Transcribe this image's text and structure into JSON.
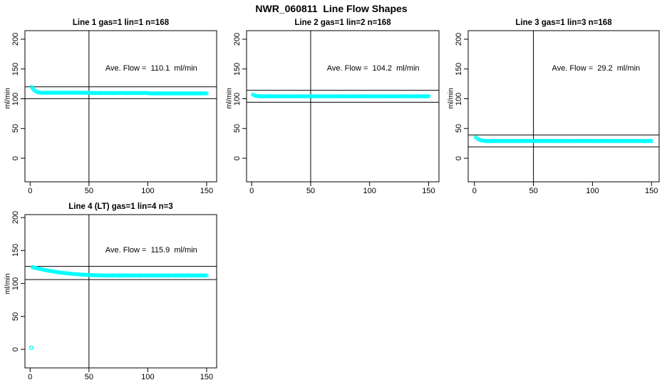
{
  "main_title": "NWR_060811  Line Flow Shapes",
  "chart_data": [
    {
      "type": "scatter",
      "title": "Line 1 gas=1 lin=1 n=168",
      "annotation": "Ave. Flow =  110.1  ml/min",
      "ave_flow_ml_min": 110.1,
      "ylabel": "ml/min",
      "xlim": [
        0,
        150
      ],
      "ylim": [
        0,
        200
      ],
      "xticks": [
        0,
        50,
        100,
        150
      ],
      "xtick_labels": [
        "0",
        "50",
        "100",
        "150"
      ],
      "yticks": [
        0,
        50,
        100,
        150,
        200
      ],
      "ytick_labels": [
        "0",
        "50",
        "100",
        "150",
        "200"
      ],
      "vline_x": 50,
      "hlines": [
        120.1,
        100.1
      ],
      "marker_color": "#00FFFF",
      "x_start": 1,
      "x_step": 1,
      "y": [
        120.2,
        117.6,
        115.4,
        113.6,
        112.2,
        111.3,
        110.7,
        110.4,
        110.3,
        110.0,
        110.4,
        109.9,
        110.2,
        110.1,
        110.3,
        110.0,
        110.4,
        109.9,
        110.2,
        110.1,
        110.3,
        110.0,
        110.4,
        109.9,
        110.2,
        110.1,
        110.3,
        110.0,
        110.4,
        109.9,
        110.2,
        110.1,
        110.3,
        110.0,
        110.4,
        109.9,
        110.2,
        110.1,
        110.3,
        110.0,
        110.4,
        109.9,
        110.2,
        110.1,
        110.3,
        110.0,
        110.4,
        109.9,
        110.2,
        110.1,
        109.8,
        109.5,
        109.9,
        109.4,
        109.7,
        109.6,
        109.8,
        109.5,
        109.9,
        109.4,
        109.7,
        109.6,
        109.8,
        109.5,
        109.9,
        109.4,
        109.7,
        109.6,
        109.8,
        109.5,
        109.9,
        109.4,
        109.7,
        109.6,
        109.8,
        109.5,
        109.9,
        109.4,
        109.7,
        109.6,
        109.8,
        109.5,
        109.9,
        109.4,
        109.7,
        109.6,
        109.8,
        109.5,
        109.9,
        109.4,
        109.7,
        109.6,
        109.8,
        109.5,
        109.9,
        109.4,
        109.7,
        109.6,
        109.8,
        109.5,
        109.2,
        108.9,
        109.3,
        108.8,
        109.1,
        109.0,
        109.2,
        108.9,
        109.3,
        108.8,
        109.1,
        109.0,
        109.2,
        108.9,
        109.3,
        108.8,
        109.1,
        109.0,
        109.2,
        108.9,
        109.3,
        108.8,
        109.1,
        109.0,
        109.2,
        108.9,
        109.3,
        108.8,
        109.1,
        109.0,
        109.2,
        108.9,
        109.3,
        108.8,
        109.1,
        109.0,
        109.2,
        108.9,
        109.3,
        108.8,
        109.1,
        109.0,
        109.2,
        108.9,
        109.3,
        108.8,
        109.1,
        109.0,
        109.2,
        108.9
      ],
      "outliers": []
    },
    {
      "type": "scatter",
      "title": "Line 2 gas=1 lin=2 n=168",
      "annotation": "Ave. Flow =  104.2  ml/min",
      "ave_flow_ml_min": 104.2,
      "ylabel": "ml/min",
      "xlim": [
        0,
        150
      ],
      "ylim": [
        0,
        200
      ],
      "xticks": [
        0,
        50,
        100,
        150
      ],
      "xtick_labels": [
        "0",
        "50",
        "100",
        "150"
      ],
      "yticks": [
        0,
        50,
        100,
        150,
        200
      ],
      "ytick_labels": [
        "0",
        "50",
        "100",
        "150",
        "200"
      ],
      "vline_x": 50,
      "hlines": [
        114.2,
        94.2
      ],
      "marker_color": "#00FFFF",
      "x_start": 1,
      "x_step": 1,
      "y": [
        107.2,
        105.9,
        105.1,
        104.7,
        104.5,
        104.3,
        104.0,
        104.4,
        103.9,
        104.2,
        104.1,
        104.3,
        104.0,
        104.4,
        103.9,
        104.2,
        104.1,
        104.3,
        104.0,
        104.4,
        103.9,
        104.2,
        104.1,
        104.3,
        104.0,
        104.4,
        103.9,
        104.2,
        104.1,
        104.3,
        104.0,
        104.4,
        103.9,
        104.2,
        104.1,
        104.3,
        104.0,
        104.4,
        103.9,
        104.2,
        104.1,
        104.3,
        104.0,
        104.4,
        103.9,
        104.2,
        104.1,
        104.3,
        104.0,
        104.4,
        103.9,
        104.2,
        104.1,
        104.3,
        104.0,
        104.4,
        103.9,
        104.2,
        104.1,
        104.3,
        104.0,
        104.4,
        103.9,
        104.2,
        104.1,
        104.3,
        104.0,
        104.4,
        103.9,
        104.2,
        104.1,
        104.3,
        104.0,
        104.4,
        103.9,
        104.2,
        104.1,
        104.3,
        104.0,
        104.4,
        103.9,
        104.2,
        104.1,
        104.3,
        104.0,
        104.4,
        103.9,
        104.2,
        104.1,
        104.3,
        104.0,
        104.4,
        103.9,
        104.2,
        104.1,
        104.3,
        104.0,
        104.4,
        103.9,
        104.2,
        104.1,
        104.3,
        104.0,
        104.4,
        103.9,
        104.2,
        104.1,
        104.3,
        104.0,
        104.4,
        103.9,
        104.2,
        104.1,
        104.3,
        104.0,
        104.4,
        103.9,
        104.2,
        104.1,
        104.3,
        104.0,
        104.4,
        103.9,
        104.2,
        104.1,
        104.3,
        104.0,
        104.4,
        103.9,
        104.2,
        104.1,
        104.3,
        104.0,
        104.4,
        103.9,
        104.2,
        104.1,
        104.3,
        104.0,
        104.4,
        103.9,
        104.2,
        104.1,
        104.3,
        104.0,
        104.4,
        103.9,
        104.2,
        104.1,
        104.3
      ],
      "outliers": []
    },
    {
      "type": "scatter",
      "title": "Line 3 gas=1 lin=3 n=168",
      "annotation": "Ave. Flow =  29.2  ml/min",
      "ave_flow_ml_min": 29.2,
      "ylabel": "ml/min",
      "xlim": [
        0,
        150
      ],
      "ylim": [
        0,
        200
      ],
      "xticks": [
        0,
        50,
        100,
        150
      ],
      "xtick_labels": [
        "0",
        "50",
        "100",
        "150"
      ],
      "yticks": [
        0,
        50,
        100,
        150,
        200
      ],
      "ytick_labels": [
        "0",
        "50",
        "100",
        "150",
        "200"
      ],
      "vline_x": 50,
      "hlines": [
        39.2,
        19.2
      ],
      "marker_color": "#00FFFF",
      "x_start": 1,
      "x_step": 1,
      "y": [
        35.6,
        33.8,
        32.4,
        31.3,
        30.5,
        29.9,
        29.6,
        29.4,
        29.2,
        28.9,
        29.3,
        28.8,
        29.1,
        29.0,
        29.2,
        28.9,
        29.3,
        28.8,
        29.1,
        29.0,
        29.2,
        28.9,
        29.3,
        28.8,
        29.1,
        29.0,
        29.2,
        28.9,
        29.3,
        28.8,
        29.1,
        29.0,
        29.2,
        28.9,
        29.3,
        28.8,
        29.1,
        29.0,
        29.2,
        28.9,
        29.3,
        28.8,
        29.1,
        29.0,
        29.2,
        28.9,
        29.3,
        28.8,
        29.1,
        29.0,
        29.2,
        28.9,
        29.3,
        28.8,
        29.1,
        29.0,
        29.2,
        28.9,
        29.3,
        28.8,
        29.1,
        29.0,
        29.2,
        28.9,
        29.3,
        28.8,
        29.1,
        29.0,
        29.2,
        28.9,
        29.3,
        28.8,
        29.1,
        29.0,
        29.2,
        28.9,
        29.3,
        28.8,
        29.1,
        29.0,
        29.2,
        28.9,
        29.3,
        28.8,
        29.1,
        29.0,
        29.2,
        28.9,
        29.3,
        28.8,
        29.1,
        29.0,
        29.2,
        28.9,
        29.3,
        28.8,
        29.1,
        29.0,
        29.2,
        28.9,
        29.3,
        28.8,
        29.1,
        29.0,
        29.2,
        28.9,
        29.3,
        28.8,
        29.1,
        29.0,
        29.2,
        28.9,
        29.3,
        28.8,
        29.1,
        29.0,
        29.2,
        28.9,
        29.3,
        28.8,
        29.1,
        29.0,
        29.2,
        28.9,
        29.3,
        28.8,
        29.1,
        29.0,
        29.2,
        28.9,
        29.3,
        28.8,
        29.1,
        29.0,
        29.2,
        28.9,
        29.3,
        28.8,
        29.1,
        29.0,
        29.2,
        28.9,
        29.3,
        28.8,
        29.1,
        29.0,
        29.2,
        28.9,
        29.3,
        28.8
      ],
      "outliers": []
    },
    {
      "type": "scatter",
      "title": "Line 4 (LT) gas=1 lin=4 n=3",
      "annotation": "Ave. Flow =  115.9  ml/min",
      "ave_flow_ml_min": 115.9,
      "ylabel": "ml/min",
      "xlim": [
        0,
        150
      ],
      "ylim": [
        0,
        200
      ],
      "xticks": [
        0,
        50,
        100,
        150
      ],
      "xtick_labels": [
        "0",
        "50",
        "100",
        "150"
      ],
      "yticks": [
        0,
        50,
        100,
        150,
        200
      ],
      "ytick_labels": [
        "0",
        "50",
        "100",
        "150",
        "200"
      ],
      "vline_x": 50,
      "hlines": [
        125.9,
        105.9
      ],
      "marker_color": "#00FFFF",
      "x_start": 2,
      "x_step": 1,
      "y": [
        124.8,
        124.3,
        123.8,
        123.4,
        123.0,
        122.6,
        122.2,
        121.8,
        121.4,
        121.0,
        120.7,
        120.3,
        120.0,
        119.6,
        119.3,
        119.0,
        118.7,
        118.4,
        118.1,
        117.8,
        117.5,
        117.3,
        117.0,
        116.8,
        116.5,
        116.3,
        116.1,
        115.9,
        115.7,
        115.5,
        115.3,
        115.1,
        114.9,
        114.8,
        114.6,
        114.4,
        114.3,
        114.1,
        114.0,
        114.0,
        113.7,
        113.6,
        113.5,
        113.4,
        113.3,
        113.2,
        113.1,
        113.0,
        112.9,
        112.8,
        112.8,
        112.7,
        112.6,
        112.6,
        112.5,
        112.5,
        112.4,
        112.4,
        112.3,
        112.3,
        112.3,
        112.0,
        112.4,
        111.9,
        112.2,
        112.1,
        112.3,
        112.0,
        112.4,
        111.9,
        112.2,
        112.1,
        112.3,
        112.0,
        112.4,
        111.9,
        112.2,
        112.1,
        112.3,
        112.0,
        112.4,
        111.9,
        112.2,
        112.1,
        112.3,
        112.0,
        112.4,
        111.9,
        112.2,
        112.1,
        112.3,
        112.0,
        112.4,
        111.9,
        112.2,
        112.1,
        112.3,
        112.0,
        112.4,
        111.9,
        112.2,
        112.1,
        112.3,
        112.0,
        112.4,
        111.9,
        112.2,
        112.1,
        112.3,
        112.0,
        112.4,
        111.9,
        112.2,
        112.1,
        112.3,
        112.0,
        112.4,
        111.9,
        112.2,
        112.1,
        112.3,
        112.0,
        112.4,
        111.9,
        112.2,
        112.1,
        112.3,
        112.0,
        112.4,
        111.9,
        112.2,
        112.1,
        112.3,
        112.0,
        112.4,
        111.9,
        112.2,
        112.1,
        112.3,
        112.0,
        112.4,
        111.9,
        112.2,
        112.1,
        112.3,
        112.0,
        112.4,
        111.9,
        112.2
      ],
      "outliers": [
        [
          1,
          2.5
        ]
      ]
    }
  ]
}
